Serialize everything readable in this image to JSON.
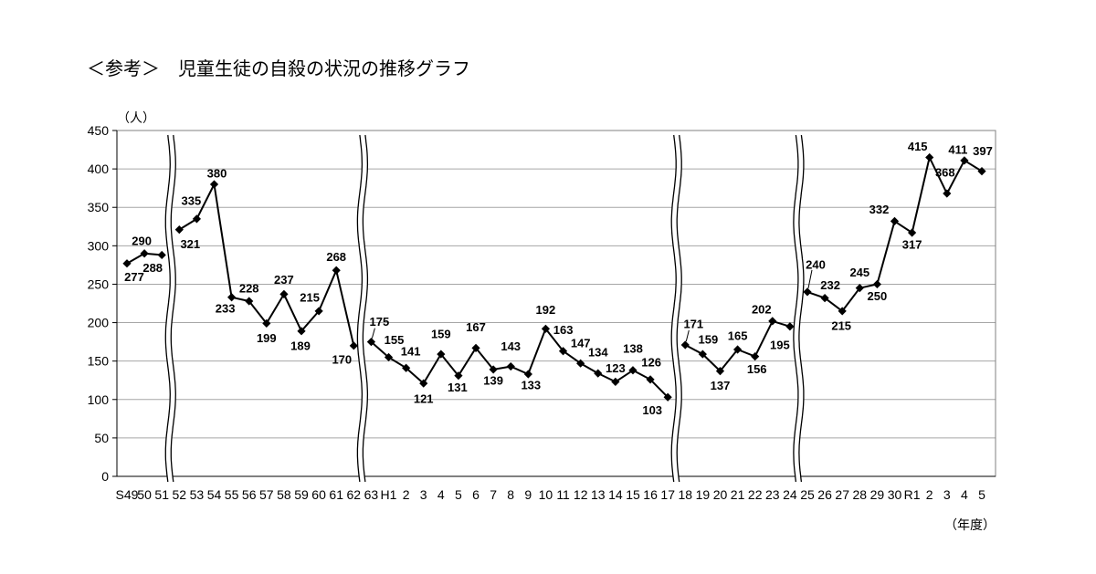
{
  "chart_data": {
    "type": "line",
    "title": "＜参考＞　児童生徒の自殺の状況の推移グラフ",
    "ylabel": "（人）",
    "xlabel": "（年度）",
    "ylim": [
      0,
      450
    ],
    "yticks": [
      0,
      50,
      100,
      150,
      200,
      250,
      300,
      350,
      400,
      450
    ],
    "grid": true,
    "line_color": "#000000",
    "categories": [
      "S49",
      "50",
      "51",
      "52",
      "53",
      "54",
      "55",
      "56",
      "57",
      "58",
      "59",
      "60",
      "61",
      "62",
      "63",
      "H1",
      "2",
      "3",
      "4",
      "5",
      "6",
      "7",
      "8",
      "9",
      "10",
      "11",
      "12",
      "13",
      "14",
      "15",
      "16",
      "17",
      "18",
      "19",
      "20",
      "21",
      "22",
      "23",
      "24",
      "25",
      "26",
      "27",
      "28",
      "29",
      "30",
      "R1",
      "2",
      "3",
      "4",
      "5"
    ],
    "values": [
      277,
      290,
      288,
      321,
      335,
      380,
      233,
      228,
      199,
      237,
      189,
      215,
      268,
      170,
      175,
      155,
      141,
      121,
      159,
      131,
      167,
      139,
      143,
      133,
      192,
      163,
      147,
      134,
      123,
      138,
      126,
      103,
      171,
      159,
      137,
      165,
      156,
      202,
      195,
      240,
      232,
      215,
      245,
      250,
      332,
      317,
      415,
      368,
      411,
      397
    ],
    "axis_breaks_after_index": [
      2,
      13,
      31,
      38
    ]
  }
}
